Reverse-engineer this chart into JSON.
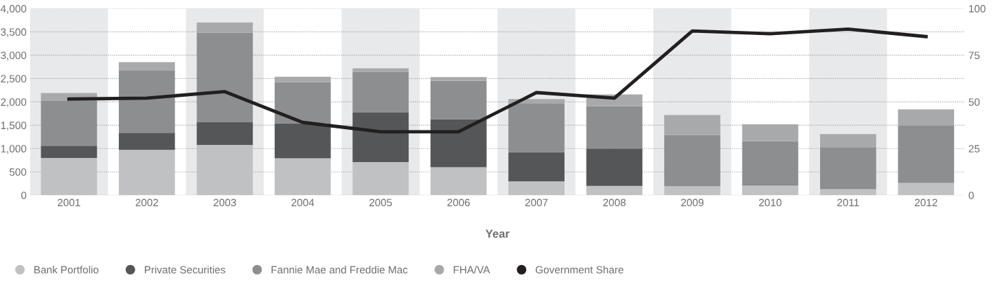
{
  "chart_data": {
    "type": "bar",
    "stacked": true,
    "xlabel": "Year",
    "categories": [
      "2001",
      "2002",
      "2003",
      "2004",
      "2005",
      "2006",
      "2007",
      "2008",
      "2009",
      "2010",
      "2011",
      "2012"
    ],
    "series": [
      {
        "name": "Bank Portfolio",
        "color": "#c0c1c3",
        "values": [
          800,
          970,
          1080,
          790,
          710,
          600,
          300,
          200,
          190,
          210,
          130,
          260
        ]
      },
      {
        "name": "Private Securities",
        "color": "#555657",
        "values": [
          260,
          370,
          490,
          750,
          1060,
          1030,
          620,
          800,
          0,
          10,
          0,
          0
        ]
      },
      {
        "name": "Fannie Mae and Freddie Mac",
        "color": "#8d8e90",
        "values": [
          960,
          1340,
          1910,
          880,
          870,
          820,
          1040,
          910,
          1100,
          940,
          890,
          1230
        ]
      },
      {
        "name": "FHA/VA",
        "color": "#a8a9ab",
        "values": [
          170,
          170,
          220,
          120,
          80,
          80,
          100,
          250,
          430,
          360,
          290,
          350
        ]
      },
      {
        "name": "Government Share",
        "type": "line",
        "axis": "y2",
        "color": "#231f20",
        "values": [
          51.5,
          52,
          55.5,
          39,
          34,
          34,
          55,
          52,
          88,
          86.5,
          89,
          85
        ]
      }
    ],
    "ylim": [
      0,
      4000
    ],
    "yticks": [
      0,
      {
        "value": 500,
        "label": "500"
      },
      {
        "value": 1000,
        "label": "1,000"
      },
      {
        "value": 1500,
        "label": "1,500"
      },
      {
        "value": 2000,
        "label": "2,000"
      },
      {
        "value": 2500,
        "label": "2,500"
      },
      {
        "value": 3000,
        "label": "3,000"
      },
      {
        "value": 3500,
        "label": "3,500"
      },
      {
        "value": 4000,
        "label": "4,000"
      }
    ],
    "y2lim": [
      0,
      100
    ],
    "y2ticks": [
      0,
      25,
      50,
      75,
      100
    ],
    "grid": "y",
    "legend": "bottom left",
    "marker": "none",
    "line_style": "solid",
    "bands": [
      {
        "axis": "x",
        "from": "2001",
        "to": "2001",
        "color": "#e8e9eb"
      },
      {
        "axis": "x",
        "from": "2003",
        "to": "2003",
        "color": "#e8e9eb"
      },
      {
        "axis": "x",
        "from": "2005",
        "to": "2005",
        "color": "#e8e9eb"
      },
      {
        "axis": "x",
        "from": "2007",
        "to": "2007",
        "color": "#e8e9eb"
      },
      {
        "axis": "x",
        "from": "2009",
        "to": "2009",
        "color": "#e8e9eb"
      },
      {
        "axis": "x",
        "from": "2011",
        "to": "2011",
        "color": "#e8e9eb"
      }
    ]
  }
}
